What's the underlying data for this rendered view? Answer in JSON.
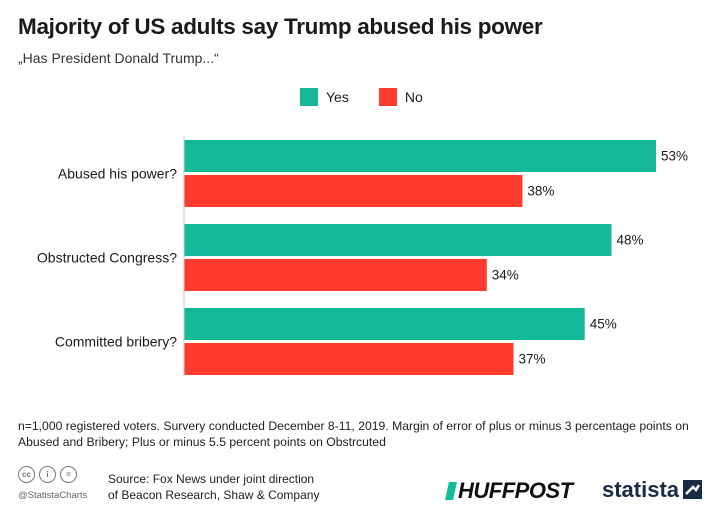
{
  "title": "Majority of US adults say Trump abused his power",
  "subtitle": "„Has President Donald Trump...“",
  "legend": [
    {
      "label": "Yes",
      "color": "#15b99a"
    },
    {
      "label": "No",
      "color": "#ff3b30"
    }
  ],
  "chart_data": {
    "type": "bar",
    "orientation": "horizontal",
    "categories": [
      "Abused his power?",
      "Obstructed Congress?",
      "Committed bribery?"
    ],
    "series": [
      {
        "name": "Yes",
        "color": "#15b99a",
        "values": [
          53,
          48,
          45
        ],
        "labels": [
          "53%",
          "48%",
          "45%"
        ]
      },
      {
        "name": "No",
        "color": "#ff3b30",
        "values": [
          38,
          34,
          37
        ],
        "labels": [
          "38%",
          "34%",
          "37%"
        ]
      }
    ],
    "xlim": [
      0,
      53
    ],
    "grid": false,
    "legend_position": "top-center"
  },
  "footer": {
    "note": "n=1,000 registered voters. Survery conducted December 8-11, 2019. Margin of error of plus or minus 3 percentage points on Abused and Bribery; Plus or minus 5.5 percent points on Obstrcuted",
    "source_line1": "Source: Fox News under joint direction",
    "source_line2": "of Beacon Research, Shaw & Company",
    "handle": "@StatistaCharts",
    "cc_icons": [
      "cc",
      "i",
      "="
    ],
    "huffpost": "HUFFPOST",
    "statista": "statista"
  }
}
